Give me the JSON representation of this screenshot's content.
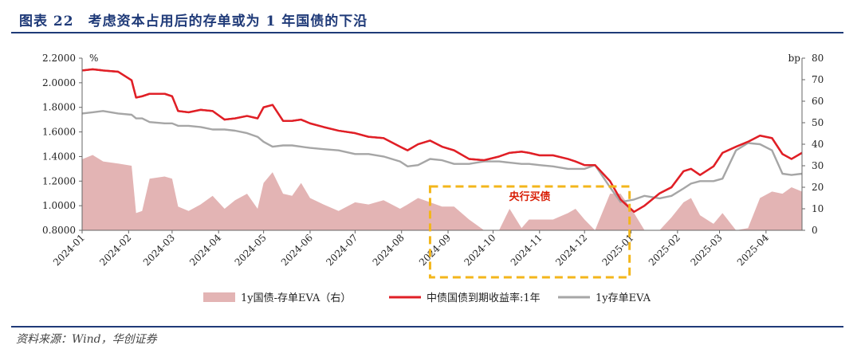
{
  "figure": {
    "title": "图表 22　考虑资本占用后的存单或为 1 年国债的下沿",
    "source": "资料来源：Wind，华创证券"
  },
  "colors": {
    "accent": "#1f3a78",
    "yield_line": "#e01f26",
    "cd_eva_line": "#a6a6a6",
    "spread_area": "#e3b4b4",
    "highlight_box": "#f3b61b",
    "annotation_text": "#d81e06"
  },
  "chart_data": {
    "type": "line",
    "left_axis": {
      "unit": "%",
      "ylim": [
        0.8,
        2.2
      ],
      "ticks": [
        "0.8000",
        "1.0000",
        "1.2000",
        "1.4000",
        "1.6000",
        "1.8000",
        "2.0000",
        "2.2000"
      ]
    },
    "right_axis": {
      "unit": "bp",
      "ylim": [
        0,
        80
      ],
      "ticks": [
        "0",
        "10",
        "20",
        "30",
        "40",
        "50",
        "60",
        "70",
        "80"
      ]
    },
    "x_ticks": [
      "2024-01",
      "2024-02",
      "2024-03",
      "2024-04",
      "2024-05",
      "2024-06",
      "2024-07",
      "2024-08",
      "2024-09",
      "2024-10",
      "2024-11",
      "2024-12",
      "2025-01",
      "2025-02",
      "2025-03",
      "2025-04"
    ],
    "x_range": [
      "2024-01-01",
      "2025-04-25"
    ],
    "legend_position": "bottom",
    "annotation": {
      "text": "央行买债",
      "box_range": [
        "2024-08-20",
        "2024-12-31"
      ]
    },
    "series": [
      {
        "name": "1y国债-存单EVA（右）",
        "type": "area",
        "axis": "right",
        "points": [
          [
            "2024-01-01",
            33
          ],
          [
            "2024-01-08",
            35
          ],
          [
            "2024-01-15",
            32
          ],
          [
            "2024-01-25",
            31
          ],
          [
            "2024-02-03",
            30
          ],
          [
            "2024-02-06",
            8
          ],
          [
            "2024-02-10",
            9
          ],
          [
            "2024-02-15",
            24
          ],
          [
            "2024-02-25",
            25
          ],
          [
            "2024-03-01",
            24
          ],
          [
            "2024-03-05",
            11
          ],
          [
            "2024-03-12",
            9
          ],
          [
            "2024-03-20",
            12
          ],
          [
            "2024-03-28",
            16
          ],
          [
            "2024-04-05",
            10
          ],
          [
            "2024-04-12",
            14
          ],
          [
            "2024-04-20",
            17
          ],
          [
            "2024-04-27",
            10
          ],
          [
            "2024-05-01",
            22
          ],
          [
            "2024-05-07",
            27
          ],
          [
            "2024-05-14",
            17
          ],
          [
            "2024-05-20",
            16
          ],
          [
            "2024-05-26",
            22
          ],
          [
            "2024-06-01",
            15
          ],
          [
            "2024-06-10",
            12
          ],
          [
            "2024-06-20",
            9
          ],
          [
            "2024-07-01",
            13
          ],
          [
            "2024-07-10",
            12
          ],
          [
            "2024-07-20",
            14
          ],
          [
            "2024-07-31",
            10
          ],
          [
            "2024-08-05",
            12
          ],
          [
            "2024-08-12",
            15
          ],
          [
            "2024-08-20",
            13
          ],
          [
            "2024-08-28",
            11
          ],
          [
            "2024-09-05",
            11
          ],
          [
            "2024-09-15",
            5
          ],
          [
            "2024-09-25",
            0
          ],
          [
            "2024-10-05",
            0
          ],
          [
            "2024-10-12",
            10
          ],
          [
            "2024-10-20",
            1
          ],
          [
            "2024-10-25",
            5
          ],
          [
            "2024-11-01",
            5
          ],
          [
            "2024-11-10",
            5
          ],
          [
            "2024-11-20",
            8
          ],
          [
            "2024-11-25",
            10
          ],
          [
            "2024-12-01",
            5
          ],
          [
            "2024-12-08",
            0
          ],
          [
            "2024-12-18",
            17
          ],
          [
            "2024-12-25",
            17
          ],
          [
            "2025-01-03",
            8
          ],
          [
            "2025-01-10",
            0
          ],
          [
            "2025-01-20",
            0
          ],
          [
            "2025-01-28",
            6
          ],
          [
            "2025-02-05",
            13
          ],
          [
            "2025-02-10",
            15
          ],
          [
            "2025-02-16",
            7
          ],
          [
            "2025-02-25",
            3
          ],
          [
            "2025-03-03",
            8
          ],
          [
            "2025-03-12",
            0
          ],
          [
            "2025-03-20",
            1
          ],
          [
            "2025-03-28",
            15
          ],
          [
            "2025-04-05",
            18
          ],
          [
            "2025-04-12",
            17
          ],
          [
            "2025-04-18",
            20
          ],
          [
            "2025-04-25",
            18
          ]
        ]
      },
      {
        "name": "中债国债到期收益率:1年",
        "type": "line",
        "axis": "left",
        "points": [
          [
            "2024-01-01",
            2.1
          ],
          [
            "2024-01-08",
            2.11
          ],
          [
            "2024-01-15",
            2.1
          ],
          [
            "2024-01-25",
            2.09
          ],
          [
            "2024-02-03",
            2.02
          ],
          [
            "2024-02-06",
            1.88
          ],
          [
            "2024-02-10",
            1.89
          ],
          [
            "2024-02-15",
            1.91
          ],
          [
            "2024-02-25",
            1.91
          ],
          [
            "2024-03-01",
            1.89
          ],
          [
            "2024-03-05",
            1.77
          ],
          [
            "2024-03-12",
            1.76
          ],
          [
            "2024-03-20",
            1.78
          ],
          [
            "2024-03-28",
            1.77
          ],
          [
            "2024-04-05",
            1.7
          ],
          [
            "2024-04-12",
            1.71
          ],
          [
            "2024-04-20",
            1.73
          ],
          [
            "2024-04-27",
            1.71
          ],
          [
            "2024-05-01",
            1.8
          ],
          [
            "2024-05-07",
            1.82
          ],
          [
            "2024-05-14",
            1.69
          ],
          [
            "2024-05-20",
            1.69
          ],
          [
            "2024-05-26",
            1.7
          ],
          [
            "2024-06-01",
            1.67
          ],
          [
            "2024-06-10",
            1.64
          ],
          [
            "2024-06-20",
            1.61
          ],
          [
            "2024-07-01",
            1.59
          ],
          [
            "2024-07-10",
            1.56
          ],
          [
            "2024-07-20",
            1.55
          ],
          [
            "2024-07-31",
            1.48
          ],
          [
            "2024-08-05",
            1.45
          ],
          [
            "2024-08-12",
            1.5
          ],
          [
            "2024-08-20",
            1.53
          ],
          [
            "2024-08-28",
            1.48
          ],
          [
            "2024-09-05",
            1.45
          ],
          [
            "2024-09-15",
            1.38
          ],
          [
            "2024-09-25",
            1.37
          ],
          [
            "2024-10-05",
            1.4
          ],
          [
            "2024-10-12",
            1.43
          ],
          [
            "2024-10-20",
            1.44
          ],
          [
            "2024-10-25",
            1.43
          ],
          [
            "2024-11-01",
            1.41
          ],
          [
            "2024-11-10",
            1.41
          ],
          [
            "2024-11-20",
            1.38
          ],
          [
            "2024-11-25",
            1.36
          ],
          [
            "2024-12-01",
            1.33
          ],
          [
            "2024-12-08",
            1.33
          ],
          [
            "2024-12-18",
            1.2
          ],
          [
            "2024-12-25",
            1.05
          ],
          [
            "2025-01-03",
            0.95
          ],
          [
            "2025-01-10",
            1.0
          ],
          [
            "2025-01-20",
            1.1
          ],
          [
            "2025-01-28",
            1.15
          ],
          [
            "2025-02-05",
            1.28
          ],
          [
            "2025-02-10",
            1.3
          ],
          [
            "2025-02-16",
            1.25
          ],
          [
            "2025-02-25",
            1.32
          ],
          [
            "2025-03-03",
            1.43
          ],
          [
            "2025-03-12",
            1.48
          ],
          [
            "2025-03-20",
            1.52
          ],
          [
            "2025-03-28",
            1.57
          ],
          [
            "2025-04-05",
            1.55
          ],
          [
            "2025-04-12",
            1.42
          ],
          [
            "2025-04-18",
            1.38
          ],
          [
            "2025-04-25",
            1.43
          ]
        ]
      },
      {
        "name": "1y存单EVA",
        "type": "line",
        "axis": "left",
        "points": [
          [
            "2024-01-01",
            1.75
          ],
          [
            "2024-01-08",
            1.76
          ],
          [
            "2024-01-15",
            1.77
          ],
          [
            "2024-01-25",
            1.75
          ],
          [
            "2024-02-03",
            1.74
          ],
          [
            "2024-02-06",
            1.71
          ],
          [
            "2024-02-10",
            1.71
          ],
          [
            "2024-02-15",
            1.68
          ],
          [
            "2024-02-25",
            1.67
          ],
          [
            "2024-03-01",
            1.67
          ],
          [
            "2024-03-05",
            1.65
          ],
          [
            "2024-03-12",
            1.65
          ],
          [
            "2024-03-20",
            1.64
          ],
          [
            "2024-03-28",
            1.62
          ],
          [
            "2024-04-05",
            1.62
          ],
          [
            "2024-04-12",
            1.61
          ],
          [
            "2024-04-20",
            1.59
          ],
          [
            "2024-04-27",
            1.56
          ],
          [
            "2024-05-01",
            1.52
          ],
          [
            "2024-05-07",
            1.48
          ],
          [
            "2024-05-14",
            1.49
          ],
          [
            "2024-05-20",
            1.49
          ],
          [
            "2024-05-26",
            1.48
          ],
          [
            "2024-06-01",
            1.47
          ],
          [
            "2024-06-10",
            1.46
          ],
          [
            "2024-06-20",
            1.45
          ],
          [
            "2024-07-01",
            1.42
          ],
          [
            "2024-07-10",
            1.42
          ],
          [
            "2024-07-20",
            1.4
          ],
          [
            "2024-07-31",
            1.36
          ],
          [
            "2024-08-05",
            1.32
          ],
          [
            "2024-08-12",
            1.33
          ],
          [
            "2024-08-20",
            1.38
          ],
          [
            "2024-08-28",
            1.37
          ],
          [
            "2024-09-05",
            1.34
          ],
          [
            "2024-09-15",
            1.34
          ],
          [
            "2024-09-25",
            1.36
          ],
          [
            "2024-10-05",
            1.36
          ],
          [
            "2024-10-12",
            1.35
          ],
          [
            "2024-10-20",
            1.34
          ],
          [
            "2024-10-25",
            1.34
          ],
          [
            "2024-11-01",
            1.33
          ],
          [
            "2024-11-10",
            1.32
          ],
          [
            "2024-11-20",
            1.3
          ],
          [
            "2024-11-25",
            1.3
          ],
          [
            "2024-12-01",
            1.3
          ],
          [
            "2024-12-08",
            1.33
          ],
          [
            "2024-12-18",
            1.15
          ],
          [
            "2024-12-25",
            1.03
          ],
          [
            "2025-01-03",
            1.05
          ],
          [
            "2025-01-10",
            1.08
          ],
          [
            "2025-01-20",
            1.06
          ],
          [
            "2025-01-28",
            1.08
          ],
          [
            "2025-02-05",
            1.14
          ],
          [
            "2025-02-10",
            1.18
          ],
          [
            "2025-02-16",
            1.2
          ],
          [
            "2025-02-25",
            1.2
          ],
          [
            "2025-03-03",
            1.22
          ],
          [
            "2025-03-12",
            1.45
          ],
          [
            "2025-03-20",
            1.51
          ],
          [
            "2025-03-28",
            1.5
          ],
          [
            "2025-04-05",
            1.45
          ],
          [
            "2025-04-12",
            1.26
          ],
          [
            "2025-04-18",
            1.25
          ],
          [
            "2025-04-25",
            1.26
          ]
        ]
      }
    ]
  }
}
